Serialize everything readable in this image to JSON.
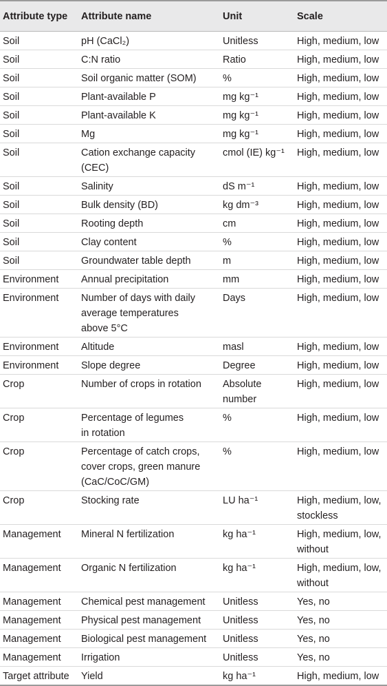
{
  "headers": [
    "Attribute type",
    "Attribute name",
    "Unit",
    "Scale"
  ],
  "rows": [
    [
      "Soil",
      "pH (CaCl₂)",
      "Unitless",
      "High, medium, low"
    ],
    [
      "Soil",
      "C:N ratio",
      "Ratio",
      "High, medium, low"
    ],
    [
      "Soil",
      "Soil organic matter (SOM)",
      "%",
      "High, medium, low"
    ],
    [
      "Soil",
      "Plant-available P",
      "mg kg⁻¹",
      "High, medium, low"
    ],
    [
      "Soil",
      "Plant-available K",
      "mg kg⁻¹",
      "High, medium, low"
    ],
    [
      "Soil",
      "Mg",
      "mg kg⁻¹",
      "High, medium, low"
    ],
    [
      "Soil",
      "Cation exchange capacity\n(CEC)",
      "cmol (IE) kg⁻¹",
      "High, medium, low"
    ],
    [
      "Soil",
      "Salinity",
      "dS m⁻¹",
      "High, medium, low"
    ],
    [
      "Soil",
      "Bulk density (BD)",
      "kg dm⁻³",
      "High, medium, low"
    ],
    [
      "Soil",
      "Rooting depth",
      "cm",
      "High, medium, low"
    ],
    [
      "Soil",
      "Clay content",
      "%",
      "High, medium, low"
    ],
    [
      "Soil",
      "Groundwater table depth",
      "m",
      "High, medium, low"
    ],
    [
      "Environment",
      "Annual precipitation",
      "mm",
      "High, medium, low"
    ],
    [
      "Environment",
      "Number of days with daily\naverage temperatures\nabove 5°C",
      "Days",
      "High, medium, low"
    ],
    [
      "Environment",
      "Altitude",
      "masl",
      "High, medium, low"
    ],
    [
      "Environment",
      "Slope degree",
      "Degree",
      "High, medium, low"
    ],
    [
      "Crop",
      "Number of crops in rotation",
      "Absolute\nnumber",
      "High, medium, low"
    ],
    [
      "Crop",
      "Percentage of legumes\nin rotation",
      "%",
      "High, medium, low"
    ],
    [
      "Crop",
      "Percentage of catch crops,\ncover crops, green manure\n(CaC/CoC/GM)",
      "%",
      "High, medium, low"
    ],
    [
      "Crop",
      "Stocking rate",
      "LU ha⁻¹",
      "High, medium, low,\nstockless"
    ],
    [
      "Management",
      "Mineral N fertilization",
      "kg ha⁻¹",
      "High, medium, low,\nwithout"
    ],
    [
      "Management",
      "Organic N fertilization",
      "kg ha⁻¹",
      "High, medium, low,\nwithout"
    ],
    [
      "Management",
      "Chemical pest management",
      "Unitless",
      "Yes, no"
    ],
    [
      "Management",
      "Physical pest management",
      "Unitless",
      "Yes, no"
    ],
    [
      "Management",
      "Biological pest management",
      "Unitless",
      "Yes, no"
    ],
    [
      "Management",
      "Irrigation",
      "Unitless",
      "Yes, no"
    ],
    [
      "Target attribute",
      "Yield",
      "kg ha⁻¹",
      "High, medium, low"
    ]
  ]
}
